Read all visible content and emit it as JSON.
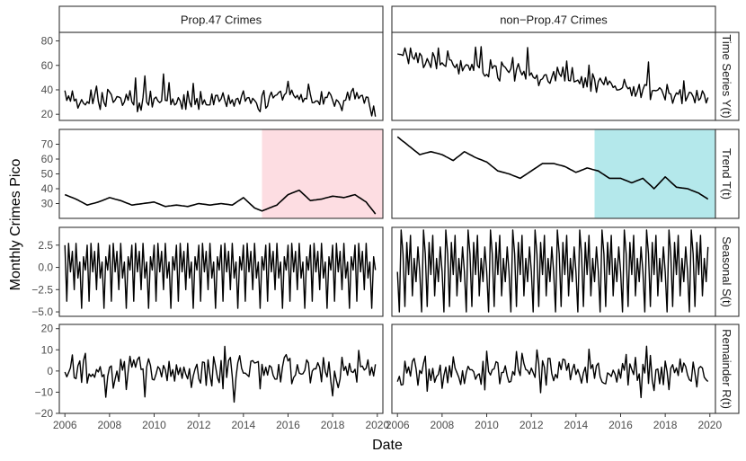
{
  "chart_data": {
    "type": "line",
    "title": "",
    "xlabel": "Date",
    "ylabel": "Monthly Crimes Pico",
    "x_range": [
      "2006-01",
      "2019-12"
    ],
    "x_ticks": [
      "2006",
      "2008",
      "2010",
      "2012",
      "2014",
      "2016",
      "2018",
      "2020"
    ],
    "grid": false,
    "legend": "none",
    "columns": [
      "Prop.47 Crimes",
      "non−Prop.47 Crimes"
    ],
    "rows": [
      {
        "label": "Time Series Y(t)",
        "ylim": [
          15,
          87
        ],
        "y_ticks": [
          "20",
          "40",
          "60",
          "80"
        ]
      },
      {
        "label": "Trend T(t)",
        "ylim": [
          20,
          80
        ],
        "y_ticks": [
          "30",
          "40",
          "50",
          "60",
          "70"
        ]
      },
      {
        "label": "Seasonal S(t)",
        "ylim": [
          -5.5,
          4.5
        ],
        "y_ticks": [
          "−5.0",
          "−2.5",
          "0.0",
          "2.5"
        ]
      },
      {
        "label": "Remainder R(t)",
        "ylim": [
          -20,
          22
        ],
        "y_ticks": [
          "−20",
          "−10",
          "0",
          "10",
          "20"
        ]
      }
    ],
    "highlight": [
      {
        "column": "Prop.47 Crimes",
        "row": "Trend T(t)",
        "from": "2014-11",
        "to": "2019-12",
        "color": "#fddde2"
      },
      {
        "column": "non−Prop.47 Crimes",
        "row": "Trend T(t)",
        "from": "2014-11",
        "to": "2019-12",
        "color": "#b4e8eb"
      }
    ],
    "trend_series": [
      {
        "column": "Prop.47 Crimes",
        "x": [
          "2006-01",
          "2006-07",
          "2007-01",
          "2007-07",
          "2008-01",
          "2008-07",
          "2009-01",
          "2009-07",
          "2010-01",
          "2010-07",
          "2011-01",
          "2011-07",
          "2012-01",
          "2012-07",
          "2013-01",
          "2013-07",
          "2014-01",
          "2014-07",
          "2014-11",
          "2015-07",
          "2016-01",
          "2016-07",
          "2017-01",
          "2017-07",
          "2018-01",
          "2018-07",
          "2019-01",
          "2019-07",
          "2019-12"
        ],
        "y": [
          36,
          33,
          29,
          31,
          34,
          32,
          29,
          30,
          31,
          28,
          29,
          28,
          30,
          29,
          30,
          29,
          34,
          27,
          25,
          29,
          36,
          39,
          32,
          33,
          35,
          34,
          36,
          31,
          23
        ]
      },
      {
        "column": "non−Prop.47 Crimes",
        "x": [
          "2006-01",
          "2006-07",
          "2007-01",
          "2007-07",
          "2008-01",
          "2008-07",
          "2009-01",
          "2009-07",
          "2010-01",
          "2010-07",
          "2011-01",
          "2011-07",
          "2012-01",
          "2012-07",
          "2013-01",
          "2013-07",
          "2014-01",
          "2014-07",
          "2015-01",
          "2015-07",
          "2016-01",
          "2016-07",
          "2017-01",
          "2017-07",
          "2018-01",
          "2018-07",
          "2019-01",
          "2019-07",
          "2019-12"
        ],
        "y": [
          75,
          69,
          63,
          65,
          63,
          59,
          65,
          61,
          58,
          52,
          50,
          47,
          52,
          57,
          57,
          55,
          51,
          54,
          52,
          47,
          47,
          44,
          47,
          40,
          48,
          41,
          40,
          37,
          33
        ]
      }
    ],
    "series": [
      {
        "column": "Prop.47 Crimes",
        "row": "Time Series Y(t)",
        "mean": 32,
        "sd": 7.5
      },
      {
        "column": "non−Prop.47 Crimes",
        "row": "Time Series Y(t)",
        "start": 68,
        "end": 32,
        "sd": 7
      },
      {
        "column": "Prop.47 Crimes",
        "row": "Seasonal S(t)",
        "seasonal_pattern": [
          2.5,
          -3.8,
          2.7,
          -0.5,
          1.8,
          -2.5,
          2.7,
          -1.2,
          0.6,
          -4.6,
          1.2,
          -0.3
        ]
      },
      {
        "column": "non−Prop.47 Crimes",
        "row": "Seasonal S(t)",
        "seasonal_pattern": [
          -0.5,
          -5.0,
          4.2,
          1.5,
          -4.4,
          2.8,
          -0.8,
          3.6,
          -3.2,
          1.0,
          -1.6,
          2.3
        ]
      },
      {
        "column": "Prop.47 Crimes",
        "row": "Remainder R(t)",
        "sd": 6
      },
      {
        "column": "non−Prop.47 Crimes",
        "row": "Remainder R(t)",
        "sd": 6
      }
    ]
  }
}
